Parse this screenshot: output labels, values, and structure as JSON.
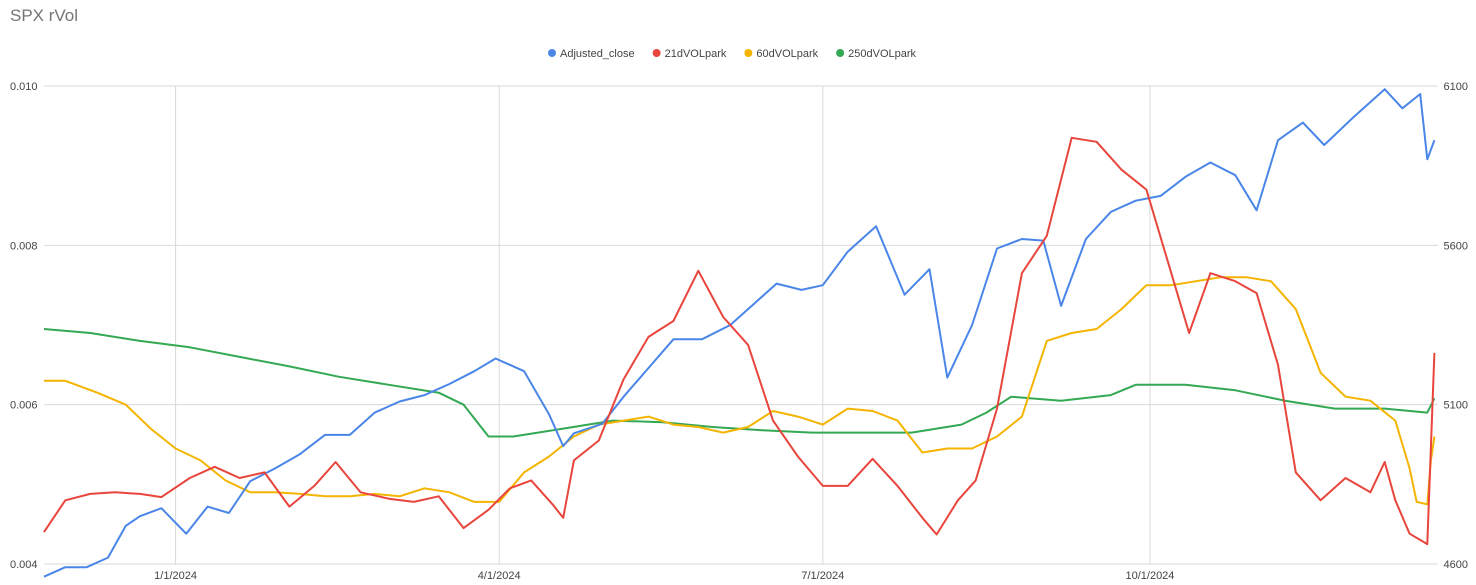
{
  "chart_data": {
    "type": "line",
    "title": "SPX rVol",
    "legend_position": "top",
    "grid": true,
    "x_tick_labels": [
      "1/1/2024",
      "4/1/2024",
      "7/1/2024",
      "10/1/2024"
    ],
    "x_ticks": [
      "2024-01-01",
      "2024-04-01",
      "2024-07-01",
      "2024-10-01"
    ],
    "x_range": [
      "2023-11-25",
      "2024-12-21"
    ],
    "y_left": {
      "ticks": [
        "0.004",
        "0.006",
        "0.008",
        "0.010"
      ],
      "range": [
        0.004,
        0.01
      ]
    },
    "y_right": {
      "ticks": [
        "4600",
        "5100",
        "5600",
        "6100"
      ],
      "range": [
        4600,
        6100
      ]
    },
    "series": [
      {
        "name": "Adjusted_close",
        "axis": "right",
        "color": "#4a86e8",
        "points": [
          [
            "2023-11-25",
            4560
          ],
          [
            "2023-12-01",
            4590
          ],
          [
            "2023-12-07",
            4590
          ],
          [
            "2023-12-13",
            4620
          ],
          [
            "2023-12-18",
            4720
          ],
          [
            "2023-12-22",
            4750
          ],
          [
            "2023-12-28",
            4775
          ],
          [
            "2024-01-04",
            4695
          ],
          [
            "2024-01-10",
            4780
          ],
          [
            "2024-01-16",
            4760
          ],
          [
            "2024-01-22",
            4860
          ],
          [
            "2024-01-29",
            4900
          ],
          [
            "2024-02-05",
            4945
          ],
          [
            "2024-02-12",
            5005
          ],
          [
            "2024-02-19",
            5005
          ],
          [
            "2024-02-26",
            5075
          ],
          [
            "2024-03-04",
            5110
          ],
          [
            "2024-03-11",
            5130
          ],
          [
            "2024-03-18",
            5165
          ],
          [
            "2024-03-25",
            5205
          ],
          [
            "2024-03-31",
            5245
          ],
          [
            "2024-04-08",
            5205
          ],
          [
            "2024-04-15",
            5070
          ],
          [
            "2024-04-19",
            4970
          ],
          [
            "2024-04-22",
            5010
          ],
          [
            "2024-04-30",
            5040
          ],
          [
            "2024-05-06",
            5125
          ],
          [
            "2024-05-13",
            5215
          ],
          [
            "2024-05-20",
            5305
          ],
          [
            "2024-05-28",
            5305
          ],
          [
            "2024-06-05",
            5350
          ],
          [
            "2024-06-12",
            5420
          ],
          [
            "2024-06-18",
            5480
          ],
          [
            "2024-06-25",
            5460
          ],
          [
            "2024-07-01",
            5475
          ],
          [
            "2024-07-08",
            5580
          ],
          [
            "2024-07-16",
            5660
          ],
          [
            "2024-07-24",
            5445
          ],
          [
            "2024-07-31",
            5525
          ],
          [
            "2024-08-05",
            5185
          ],
          [
            "2024-08-12",
            5350
          ],
          [
            "2024-08-19",
            5590
          ],
          [
            "2024-08-26",
            5620
          ],
          [
            "2024-09-01",
            5615
          ],
          [
            "2024-09-06",
            5410
          ],
          [
            "2024-09-13",
            5620
          ],
          [
            "2024-09-20",
            5705
          ],
          [
            "2024-09-27",
            5740
          ],
          [
            "2024-10-04",
            5755
          ],
          [
            "2024-10-11",
            5815
          ],
          [
            "2024-10-18",
            5860
          ],
          [
            "2024-10-25",
            5820
          ],
          [
            "2024-10-31",
            5710
          ],
          [
            "2024-11-06",
            5930
          ],
          [
            "2024-11-13",
            5985
          ],
          [
            "2024-11-19",
            5915
          ],
          [
            "2024-11-27",
            6000
          ],
          [
            "2024-12-06",
            6090
          ],
          [
            "2024-12-11",
            6030
          ],
          [
            "2024-12-16",
            6075
          ],
          [
            "2024-12-18",
            5870
          ],
          [
            "2024-12-20",
            5930
          ]
        ]
      },
      {
        "name": "21dVOLpark",
        "axis": "left",
        "color": "#e8453c",
        "points": [
          [
            "2023-11-25",
            0.0044
          ],
          [
            "2023-12-01",
            0.0048
          ],
          [
            "2023-12-08",
            0.00488
          ],
          [
            "2023-12-15",
            0.0049
          ],
          [
            "2023-12-22",
            0.00488
          ],
          [
            "2023-12-28",
            0.00484
          ],
          [
            "2024-01-05",
            0.00508
          ],
          [
            "2024-01-12",
            0.00522
          ],
          [
            "2024-01-19",
            0.00508
          ],
          [
            "2024-01-26",
            0.00515
          ],
          [
            "2024-02-02",
            0.00472
          ],
          [
            "2024-02-09",
            0.00498
          ],
          [
            "2024-02-15",
            0.00528
          ],
          [
            "2024-02-22",
            0.0049
          ],
          [
            "2024-03-01",
            0.00482
          ],
          [
            "2024-03-08",
            0.00478
          ],
          [
            "2024-03-15",
            0.00485
          ],
          [
            "2024-03-22",
            0.00445
          ],
          [
            "2024-03-29",
            0.00468
          ],
          [
            "2024-04-04",
            0.00495
          ],
          [
            "2024-04-10",
            0.00505
          ],
          [
            "2024-04-16",
            0.00475
          ],
          [
            "2024-04-19",
            0.00458
          ],
          [
            "2024-04-22",
            0.0053
          ],
          [
            "2024-04-29",
            0.00555
          ],
          [
            "2024-05-06",
            0.00632
          ],
          [
            "2024-05-13",
            0.00685
          ],
          [
            "2024-05-20",
            0.00705
          ],
          [
            "2024-05-27",
            0.00768
          ],
          [
            "2024-06-03",
            0.0071
          ],
          [
            "2024-06-10",
            0.00675
          ],
          [
            "2024-06-17",
            0.0058
          ],
          [
            "2024-06-24",
            0.00535
          ],
          [
            "2024-07-01",
            0.00498
          ],
          [
            "2024-07-08",
            0.00498
          ],
          [
            "2024-07-15",
            0.00532
          ],
          [
            "2024-07-22",
            0.00498
          ],
          [
            "2024-07-29",
            0.00458
          ],
          [
            "2024-08-02",
            0.00437
          ],
          [
            "2024-08-08",
            0.0048
          ],
          [
            "2024-08-13",
            0.00505
          ],
          [
            "2024-08-19",
            0.00595
          ],
          [
            "2024-08-26",
            0.00765
          ],
          [
            "2024-09-02",
            0.00812
          ],
          [
            "2024-09-09",
            0.00935
          ],
          [
            "2024-09-16",
            0.0093
          ],
          [
            "2024-09-23",
            0.00895
          ],
          [
            "2024-09-30",
            0.0087
          ],
          [
            "2024-10-07",
            0.00765
          ],
          [
            "2024-10-12",
            0.0069
          ],
          [
            "2024-10-18",
            0.00765
          ],
          [
            "2024-10-25",
            0.00755
          ],
          [
            "2024-10-31",
            0.0074
          ],
          [
            "2024-11-06",
            0.0065
          ],
          [
            "2024-11-11",
            0.00515
          ],
          [
            "2024-11-18",
            0.0048
          ],
          [
            "2024-11-25",
            0.00508
          ],
          [
            "2024-12-02",
            0.0049
          ],
          [
            "2024-12-06",
            0.00528
          ],
          [
            "2024-12-09",
            0.0048
          ],
          [
            "2024-12-13",
            0.00438
          ],
          [
            "2024-12-18",
            0.00425
          ],
          [
            "2024-12-20",
            0.00665
          ]
        ]
      },
      {
        "name": "60dVOLpark",
        "axis": "left",
        "color": "#f4b400",
        "points": [
          [
            "2023-11-25",
            0.0063
          ],
          [
            "2023-12-01",
            0.0063
          ],
          [
            "2023-12-10",
            0.00615
          ],
          [
            "2023-12-18",
            0.006
          ],
          [
            "2023-12-25",
            0.0057
          ],
          [
            "2024-01-01",
            0.00545
          ],
          [
            "2024-01-08",
            0.0053
          ],
          [
            "2024-01-15",
            0.00505
          ],
          [
            "2024-01-22",
            0.0049
          ],
          [
            "2024-01-29",
            0.0049
          ],
          [
            "2024-02-05",
            0.00488
          ],
          [
            "2024-02-12",
            0.00485
          ],
          [
            "2024-02-19",
            0.00485
          ],
          [
            "2024-02-26",
            0.00488
          ],
          [
            "2024-03-04",
            0.00485
          ],
          [
            "2024-03-11",
            0.00495
          ],
          [
            "2024-03-18",
            0.0049
          ],
          [
            "2024-03-25",
            0.00478
          ],
          [
            "2024-04-01",
            0.00478
          ],
          [
            "2024-04-08",
            0.00515
          ],
          [
            "2024-04-15",
            0.00535
          ],
          [
            "2024-04-22",
            0.0056
          ],
          [
            "2024-04-29",
            0.00575
          ],
          [
            "2024-05-06",
            0.0058
          ],
          [
            "2024-05-13",
            0.00585
          ],
          [
            "2024-05-20",
            0.00575
          ],
          [
            "2024-05-27",
            0.00572
          ],
          [
            "2024-06-03",
            0.00565
          ],
          [
            "2024-06-10",
            0.00572
          ],
          [
            "2024-06-17",
            0.00592
          ],
          [
            "2024-06-24",
            0.00585
          ],
          [
            "2024-07-01",
            0.00575
          ],
          [
            "2024-07-08",
            0.00595
          ],
          [
            "2024-07-15",
            0.00592
          ],
          [
            "2024-07-22",
            0.0058
          ],
          [
            "2024-07-29",
            0.0054
          ],
          [
            "2024-08-05",
            0.00545
          ],
          [
            "2024-08-12",
            0.00545
          ],
          [
            "2024-08-19",
            0.0056
          ],
          [
            "2024-08-26",
            0.00585
          ],
          [
            "2024-09-02",
            0.0068
          ],
          [
            "2024-09-09",
            0.0069
          ],
          [
            "2024-09-16",
            0.00695
          ],
          [
            "2024-09-23",
            0.0072
          ],
          [
            "2024-09-30",
            0.0075
          ],
          [
            "2024-10-07",
            0.0075
          ],
          [
            "2024-10-14",
            0.00755
          ],
          [
            "2024-10-21",
            0.0076
          ],
          [
            "2024-10-28",
            0.0076
          ],
          [
            "2024-11-04",
            0.00755
          ],
          [
            "2024-11-11",
            0.0072
          ],
          [
            "2024-11-18",
            0.0064
          ],
          [
            "2024-11-25",
            0.0061
          ],
          [
            "2024-12-02",
            0.00605
          ],
          [
            "2024-12-09",
            0.0058
          ],
          [
            "2024-12-13",
            0.0052
          ],
          [
            "2024-12-15",
            0.00478
          ],
          [
            "2024-12-18",
            0.00475
          ],
          [
            "2024-12-19",
            0.0053
          ],
          [
            "2024-12-20",
            0.0056
          ]
        ]
      },
      {
        "name": "250dVOLpark",
        "axis": "left",
        "color": "#34a853",
        "points": [
          [
            "2023-11-25",
            0.00695
          ],
          [
            "2023-12-08",
            0.0069
          ],
          [
            "2023-12-22",
            0.0068
          ],
          [
            "2024-01-05",
            0.00672
          ],
          [
            "2024-01-19",
            0.0066
          ],
          [
            "2024-02-02",
            0.00648
          ],
          [
            "2024-02-16",
            0.00635
          ],
          [
            "2024-03-01",
            0.00625
          ],
          [
            "2024-03-15",
            0.00615
          ],
          [
            "2024-03-22",
            0.006
          ],
          [
            "2024-03-29",
            0.0056
          ],
          [
            "2024-04-05",
            0.0056
          ],
          [
            "2024-04-19",
            0.0057
          ],
          [
            "2024-05-03",
            0.0058
          ],
          [
            "2024-05-17",
            0.00578
          ],
          [
            "2024-05-31",
            0.00572
          ],
          [
            "2024-06-14",
            0.00568
          ],
          [
            "2024-06-28",
            0.00565
          ],
          [
            "2024-07-12",
            0.00565
          ],
          [
            "2024-07-26",
            0.00565
          ],
          [
            "2024-08-09",
            0.00575
          ],
          [
            "2024-08-16",
            0.0059
          ],
          [
            "2024-08-23",
            0.0061
          ],
          [
            "2024-09-06",
            0.00605
          ],
          [
            "2024-09-20",
            0.00612
          ],
          [
            "2024-09-27",
            0.00625
          ],
          [
            "2024-10-11",
            0.00625
          ],
          [
            "2024-10-25",
            0.00618
          ],
          [
            "2024-11-08",
            0.00605
          ],
          [
            "2024-11-22",
            0.00595
          ],
          [
            "2024-12-06",
            0.00595
          ],
          [
            "2024-12-18",
            0.0059
          ],
          [
            "2024-12-20",
            0.00608
          ]
        ]
      }
    ]
  }
}
